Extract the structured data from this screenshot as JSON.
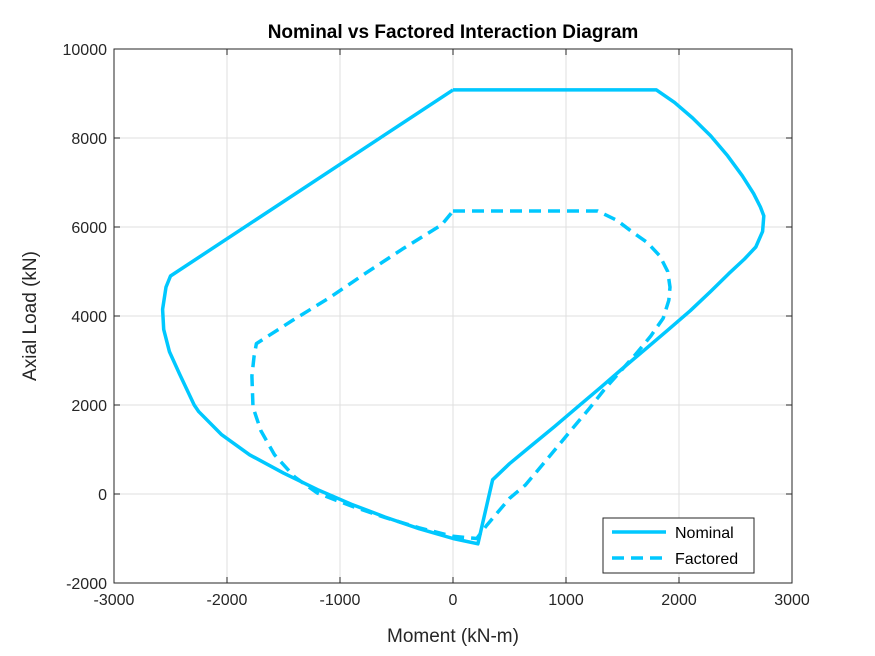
{
  "chart_data": {
    "type": "line",
    "title": "Nominal vs Factored Interaction Diagram",
    "xlabel": "Moment (kN-m)",
    "ylabel": "Axial Load (kN)",
    "xlim": [
      -3000,
      3000
    ],
    "ylim": [
      -2000,
      10000
    ],
    "xticks": [
      -3000,
      -2000,
      -1000,
      0,
      1000,
      2000,
      3000
    ],
    "yticks": [
      -2000,
      0,
      2000,
      4000,
      6000,
      8000,
      10000
    ],
    "grid": true,
    "legend_position": "bottom-right",
    "colors": {
      "series": "#00c8ff",
      "axis": "#262626",
      "grid": "#dfdfdf"
    },
    "series": [
      {
        "name": "Nominal",
        "style": "solid",
        "x": [
          0,
          1800,
          1960,
          2120,
          2280,
          2430,
          2560,
          2660,
          2720,
          2750,
          2740,
          2680,
          2580,
          2440,
          2280,
          2100,
          1900,
          1700,
          1500,
          1300,
          1100,
          900,
          700,
          500,
          350,
          220,
          0,
          -300,
          -600,
          -900,
          -1200,
          -1500,
          -1800,
          -2050,
          -2250,
          -2290,
          -2420,
          -2510,
          -2560,
          -2570,
          -2540,
          -2500,
          0
        ],
        "y": [
          9080,
          9080,
          8800,
          8450,
          8050,
          7600,
          7150,
          6750,
          6450,
          6250,
          5900,
          5550,
          5280,
          4950,
          4550,
          4120,
          3680,
          3250,
          2820,
          2380,
          1950,
          1520,
          1100,
          680,
          320,
          -1120,
          -1000,
          -780,
          -520,
          -230,
          100,
          470,
          880,
          1340,
          1850,
          2000,
          2700,
          3200,
          3700,
          4150,
          4650,
          4900,
          9080
        ]
      },
      {
        "name": "Factored",
        "style": "dashed",
        "x": [
          0,
          1280,
          1450,
          1580,
          1720,
          1830,
          1900,
          1920,
          1910,
          1860,
          1750,
          1620,
          1480,
          1340,
          1200,
          1060,
          920,
          780,
          640,
          500,
          300,
          210,
          0,
          -300,
          -600,
          -900,
          -1200,
          -1400,
          -1580,
          -1700,
          -1770,
          -1780,
          -1760,
          -1740,
          -1420,
          -1100,
          -780,
          -450,
          -100,
          0
        ],
        "y": [
          6360,
          6360,
          6150,
          5900,
          5650,
          5350,
          5000,
          4650,
          4350,
          3950,
          3550,
          3150,
          2750,
          2350,
          1900,
          1480,
          1050,
          620,
          200,
          -100,
          -700,
          -1000,
          -950,
          -760,
          -530,
          -270,
          20,
          380,
          880,
          1420,
          1950,
          2650,
          3100,
          3380,
          3900,
          4400,
          4950,
          5500,
          6050,
          6360
        ]
      }
    ]
  }
}
